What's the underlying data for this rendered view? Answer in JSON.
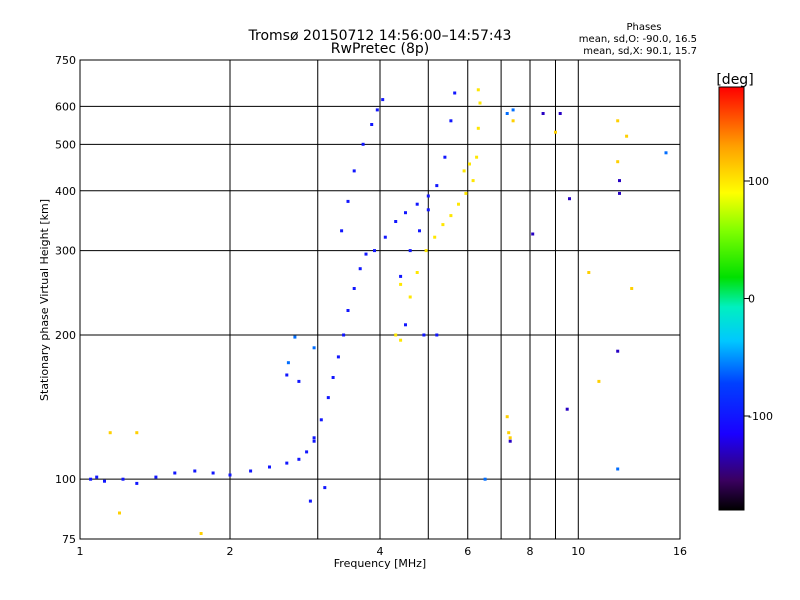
{
  "header": {
    "title": "Tromsø 20150712 14:56:00–14:57:43",
    "subtitle": "RwPretec (8p)"
  },
  "phase_box": {
    "title": "Phases",
    "line_o": "mean, sd,O: -90.0, 16.5",
    "line_x": "mean, sd,X:  90.1, 15.7"
  },
  "colorbar": {
    "label": "[deg]",
    "range": [
      -180,
      180
    ],
    "ticks": [
      100,
      0,
      -100
    ],
    "tick_labels": [
      "100",
      "0",
      "-100"
    ]
  },
  "chart_data": {
    "type": "scatter",
    "title": "Tromsø 20150712 14:56:00–14:57:43",
    "subtitle": "RwPretec (8p)",
    "xlabel": "Frequency [MHz]",
    "ylabel": "Stationary phase Virtual Height [km]",
    "x_scale": "log",
    "y_scale": "log",
    "xlim": [
      1,
      16
    ],
    "ylim": [
      75,
      750
    ],
    "x_ticks": [
      1,
      2,
      4,
      6,
      8,
      10,
      16
    ],
    "x_tick_labels": [
      "1",
      "2",
      "4",
      "6",
      "8",
      "10",
      "16"
    ],
    "x_minor_ticks": [
      3,
      5,
      7,
      9
    ],
    "y_ticks": [
      75,
      100,
      200,
      300,
      400,
      500,
      600,
      750
    ],
    "y_tick_labels": [
      "75",
      "100",
      "200",
      "300",
      "400",
      "500",
      "600",
      "750"
    ],
    "grid": true,
    "color_scale": "phase [deg], rainbow from -180 (black/purple) to 180 (red)",
    "series": [
      {
        "points": [
          [
            1.05,
            100
          ],
          [
            1.08,
            101
          ],
          [
            1.12,
            99
          ],
          [
            1.22,
            100
          ],
          [
            1.3,
            98
          ],
          [
            1.42,
            101
          ],
          [
            1.55,
            103
          ],
          [
            1.7,
            104
          ],
          [
            1.85,
            103
          ],
          [
            2.0,
            102
          ],
          [
            2.2,
            104
          ],
          [
            2.4,
            106
          ],
          [
            2.6,
            108
          ],
          [
            2.75,
            110
          ],
          [
            2.85,
            114
          ],
          [
            2.95,
            122
          ],
          [
            3.05,
            133
          ],
          [
            3.15,
            148
          ],
          [
            3.22,
            163
          ],
          [
            3.3,
            180
          ],
          [
            3.38,
            200
          ],
          [
            3.45,
            225
          ],
          [
            3.55,
            250
          ],
          [
            3.65,
            275
          ],
          [
            3.75,
            295
          ],
          [
            3.9,
            300
          ],
          [
            4.1,
            320
          ],
          [
            4.3,
            345
          ],
          [
            4.5,
            360
          ],
          [
            4.75,
            375
          ],
          [
            5.0,
            390
          ],
          [
            5.2,
            410
          ],
          [
            5.4,
            470
          ],
          [
            5.55,
            560
          ],
          [
            5.65,
            640
          ],
          [
            3.35,
            330
          ],
          [
            3.45,
            380
          ],
          [
            3.55,
            440
          ],
          [
            3.7,
            500
          ],
          [
            3.85,
            550
          ],
          [
            3.95,
            590
          ],
          [
            4.05,
            620
          ],
          [
            4.4,
            265
          ],
          [
            4.6,
            300
          ],
          [
            4.8,
            330
          ],
          [
            5.0,
            365
          ],
          [
            4.5,
            210
          ],
          [
            4.9,
            200
          ],
          [
            5.2,
            200
          ],
          [
            2.6,
            165
          ],
          [
            2.75,
            160
          ],
          [
            2.95,
            120
          ],
          [
            3.1,
            96
          ],
          [
            2.9,
            90
          ]
        ],
        "phase": -100
      },
      {
        "points": [
          [
            4.4,
            255
          ],
          [
            4.6,
            240
          ],
          [
            4.75,
            270
          ],
          [
            4.95,
            300
          ],
          [
            5.15,
            320
          ],
          [
            5.35,
            340
          ],
          [
            5.55,
            355
          ],
          [
            5.75,
            375
          ],
          [
            5.95,
            395
          ],
          [
            6.15,
            420
          ],
          [
            6.25,
            470
          ],
          [
            6.3,
            540
          ],
          [
            6.35,
            610
          ],
          [
            6.3,
            650
          ],
          [
            4.3,
            200
          ],
          [
            4.4,
            195
          ],
          [
            6.05,
            455
          ],
          [
            5.9,
            440
          ]
        ],
        "phase": 100
      },
      {
        "points": [
          [
            1.15,
            125
          ],
          [
            1.3,
            125
          ],
          [
            1.75,
            77
          ],
          [
            1.2,
            85
          ],
          [
            7.2,
            135
          ],
          [
            7.25,
            125
          ],
          [
            7.3,
            122
          ],
          [
            9.0,
            530
          ],
          [
            11.0,
            160
          ],
          [
            12.0,
            560
          ],
          [
            12.5,
            520
          ],
          [
            12.8,
            250
          ],
          [
            7.4,
            560
          ],
          [
            10.5,
            270
          ],
          [
            12.0,
            460
          ]
        ],
        "phase": 110
      },
      {
        "points": [
          [
            8.5,
            580
          ],
          [
            9.2,
            580
          ],
          [
            12.1,
            420
          ],
          [
            12.1,
            395
          ],
          [
            12.0,
            185
          ],
          [
            9.6,
            385
          ],
          [
            9.5,
            140
          ],
          [
            8.1,
            325
          ],
          [
            7.3,
            120
          ]
        ],
        "phase": -130
      },
      {
        "points": [
          [
            2.7,
            198
          ],
          [
            2.62,
            175
          ],
          [
            2.95,
            188
          ],
          [
            7.4,
            590
          ],
          [
            12.0,
            105
          ],
          [
            15.0,
            480
          ],
          [
            7.2,
            580
          ],
          [
            6.5,
            100
          ]
        ],
        "phase": -60
      }
    ]
  }
}
